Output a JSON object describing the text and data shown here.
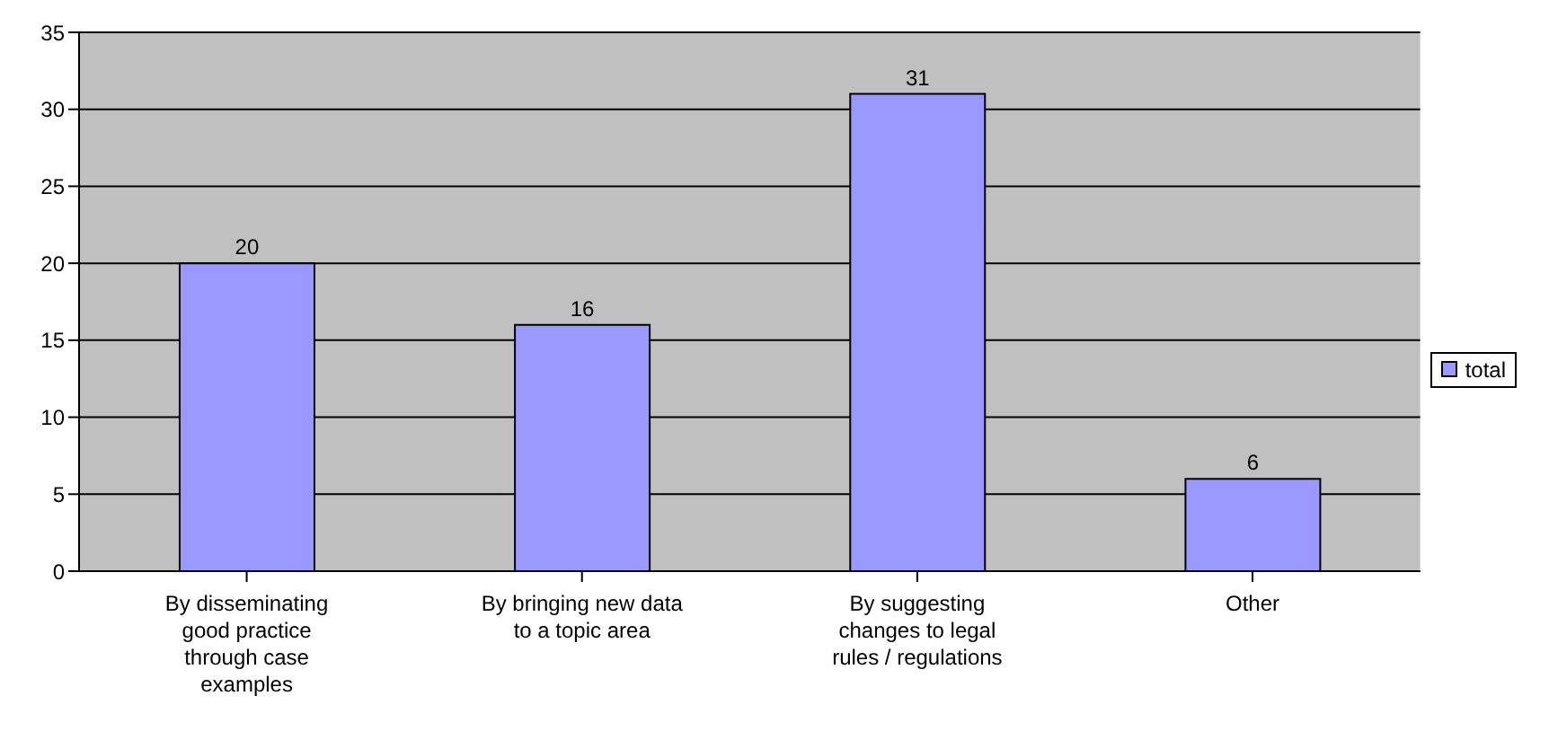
{
  "chart_data": {
    "type": "bar",
    "categories": [
      "By disseminating good practice through case examples",
      "By bringing new data to a topic area",
      "By suggesting changes to legal rules / regulations",
      "Other"
    ],
    "series": [
      {
        "name": "total",
        "color": "#9999ff",
        "values": [
          20,
          16,
          31,
          6
        ]
      }
    ],
    "ylim": [
      0,
      35
    ],
    "yticks": [
      0,
      5,
      10,
      15,
      20,
      25,
      30,
      35
    ],
    "grid": "y",
    "legend": "right",
    "data_labels": true
  }
}
